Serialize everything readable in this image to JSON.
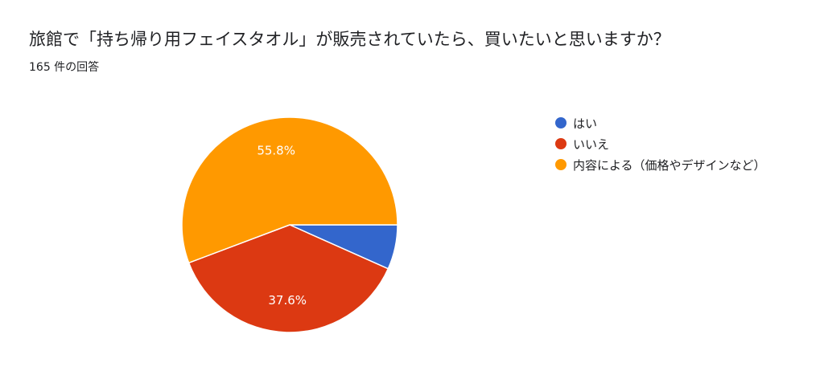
{
  "header": {
    "title": "旅館で「持ち帰り用フェイスタオル」が販売されていたら、買いたいと思いますか？",
    "response_count": "165 件の回答"
  },
  "chart_data": {
    "type": "pie",
    "title": "旅館で「持ち帰り用フェイスタオル」が販売されていたら、買いたいと思いますか？",
    "legend_position": "right",
    "slices": [
      {
        "label": "はい",
        "value": 6.7,
        "color": "#3366cc",
        "display": ""
      },
      {
        "label": "いいえ",
        "value": 37.6,
        "color": "#dc3912",
        "display": "37.6%"
      },
      {
        "label": "内容による（価格やデザインなど）",
        "value": 55.8,
        "color": "#ff9900",
        "display": "55.8%"
      }
    ]
  }
}
